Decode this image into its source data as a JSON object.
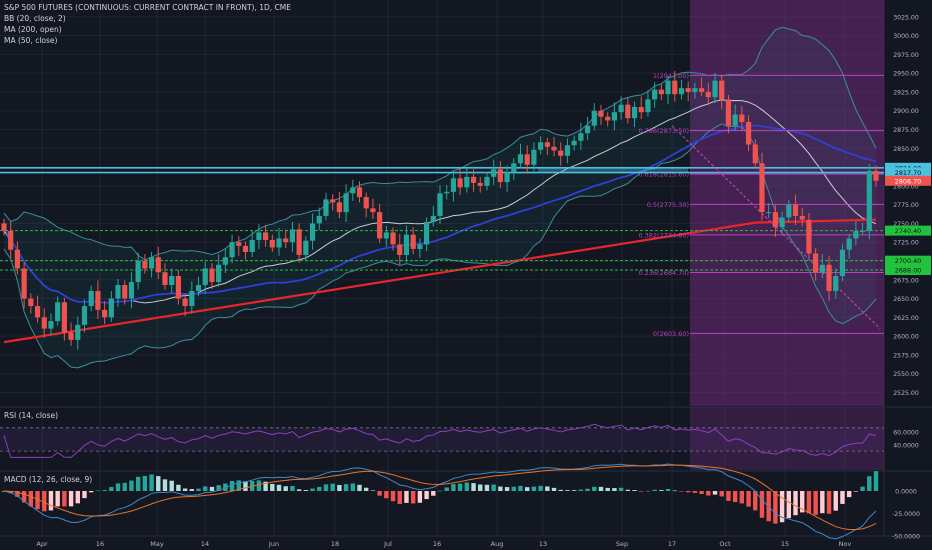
{
  "header": {
    "title": "S&P 500 FUTURES (CONTINUOUS: CURRENT CONTRACT IN FRONT), 1D, CME",
    "indicators": [
      "BB (20, close, 2)",
      "MA (200, open)",
      "MA (50, close)"
    ]
  },
  "rsi_label": "RSI (14, close)",
  "macd_label": "MACD (12, 26, close, 9)",
  "colors": {
    "background": "#131722",
    "grid": "#1f2433",
    "up": "#26a69a",
    "down": "#ef5350",
    "bb": "#3a8f9a",
    "ma200": "#e8262c",
    "ma50": "#2f3fd8",
    "ma20": "#c9ccd6",
    "fib": "#c040c0",
    "zone": "#6e2a78",
    "channel": "#4cc0e0",
    "support": "#23c23e",
    "rsi": "#8e3fc0",
    "macd_line": "#3e89c8",
    "signal_line": "#e8742c"
  },
  "chart_data": {
    "type": "candlestick",
    "y_axis": [
      "3025.00",
      "3000.00",
      "2975.00",
      "2950.00",
      "2925.00",
      "2900.00",
      "2875.00",
      "2850.00",
      "2825.00",
      "2800.00",
      "2775.00",
      "2750.00",
      "2725.00",
      "2700.00",
      "2675.00",
      "2650.00",
      "2625.00",
      "2600.00",
      "2575.00",
      "2550.00",
      "2525.00"
    ],
    "ylim": [
      2515,
      3030
    ],
    "x_labels": [
      "Apr",
      "16",
      "May",
      "14",
      "Jun",
      "18",
      "Jul",
      "16",
      "Aug",
      "13",
      "Sep",
      "17",
      "Oct",
      "15",
      "Nov"
    ],
    "fib_levels": [
      {
        "label": "1(2947.00)",
        "value": 2947
      },
      {
        "label": "0.786(2873.50)",
        "value": 2873.5
      },
      {
        "label": "0.618(2815.60)",
        "value": 2815.6
      },
      {
        "label": "0.5(2775.30)",
        "value": 2775.3
      },
      {
        "label": "0.382(2734.80)",
        "value": 2734.8
      },
      {
        "label": "0.236(2684.70)",
        "value": 2684.7
      },
      {
        "label": "0(2603.60)",
        "value": 2603.6
      }
    ],
    "price_tags": [
      {
        "label": "2824.00",
        "value": 2824,
        "style": "channel"
      },
      {
        "label": "2817.70",
        "value": 2817.7,
        "style": "channel"
      },
      {
        "label": "2806.70",
        "value": 2806.7,
        "style": "last"
      },
      {
        "label": "2740.40",
        "value": 2740.4,
        "style": "support"
      },
      {
        "label": "2700.40",
        "value": 2700.4,
        "style": "support"
      },
      {
        "label": "2688.00",
        "value": 2688,
        "style": "support"
      }
    ],
    "rsi_levels": [
      "60.0000",
      "40.0000"
    ],
    "macd_levels": [
      "0.0000",
      "-25.0000",
      "-50.0000"
    ],
    "closes": [
      2740,
      2715,
      2690,
      2650,
      2640,
      2625,
      2610,
      2620,
      2645,
      2605,
      2595,
      2615,
      2640,
      2660,
      2635,
      2625,
      2650,
      2668,
      2650,
      2672,
      2700,
      2690,
      2705,
      2685,
      2668,
      2680,
      2650,
      2640,
      2660,
      2668,
      2690,
      2672,
      2695,
      2705,
      2725,
      2720,
      2712,
      2728,
      2738,
      2728,
      2718,
      2730,
      2725,
      2742,
      2708,
      2727,
      2750,
      2760,
      2782,
      2778,
      2765,
      2790,
      2798,
      2785,
      2770,
      2765,
      2730,
      2738,
      2722,
      2708,
      2735,
      2716,
      2722,
      2752,
      2760,
      2790,
      2792,
      2810,
      2798,
      2812,
      2804,
      2800,
      2812,
      2822,
      2805,
      2818,
      2830,
      2842,
      2828,
      2848,
      2858,
      2852,
      2847,
      2840,
      2854,
      2860,
      2870,
      2880,
      2900,
      2892,
      2887,
      2898,
      2908,
      2890,
      2905,
      2898,
      2915,
      2928,
      2922,
      2940,
      2922,
      2930,
      2925,
      2930,
      2925,
      2918,
      2940,
      2915,
      2880,
      2895,
      2885,
      2855,
      2830,
      2765,
      2765,
      2745,
      2758,
      2775,
      2760,
      2755,
      2710,
      2685,
      2695,
      2660,
      2680,
      2715,
      2730,
      2740,
      2740,
      2820,
      2806.7
    ]
  }
}
